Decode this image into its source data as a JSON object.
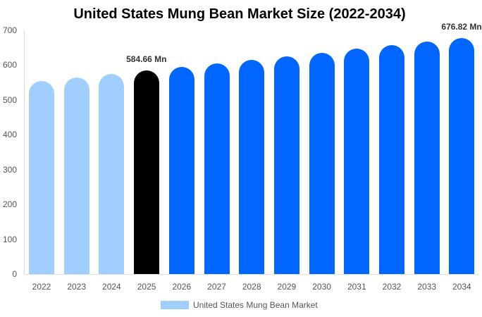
{
  "chart_data": {
    "type": "bar",
    "title": "United States Mung Bean Market Size (2022-2034)",
    "xlabel": "",
    "ylabel": "",
    "ylim": [
      0,
      700
    ],
    "yticks": [
      0,
      100,
      200,
      300,
      400,
      500,
      600,
      700
    ],
    "categories": [
      "2022",
      "2023",
      "2024",
      "2025",
      "2026",
      "2027",
      "2028",
      "2029",
      "2030",
      "2031",
      "2032",
      "2033",
      "2034"
    ],
    "series": [
      {
        "name": "United States Mung Bean Market",
        "values": [
          554.5,
          564.2,
          574.3,
          584.66,
          594.6,
          604.8,
          615.2,
          625.6,
          636.2,
          646.9,
          657.7,
          667.1,
          676.82
        ]
      }
    ],
    "bar_colors": [
      "#a0cfff",
      "#a0cfff",
      "#a0cfff",
      "#000000",
      "#0066ff",
      "#0066ff",
      "#0066ff",
      "#0066ff",
      "#0066ff",
      "#0066ff",
      "#0066ff",
      "#0066ff",
      "#0066ff"
    ],
    "annotations": [
      {
        "category": "2025",
        "text": "584.66 Mn"
      },
      {
        "category": "2034",
        "text": "676.82 Mn"
      }
    ],
    "grid": false,
    "legend_position": "bottom"
  },
  "title": "United States Mung Bean Market Size (2022-2034)",
  "yticks": [
    "700",
    "600",
    "500",
    "400",
    "300",
    "200",
    "100",
    "0"
  ],
  "labels": {
    "y2025": "584.66 Mn",
    "y2034": "676.82 Mn"
  },
  "legend": {
    "label": "United States Mung Bean Market",
    "color": "#a0cfff"
  }
}
